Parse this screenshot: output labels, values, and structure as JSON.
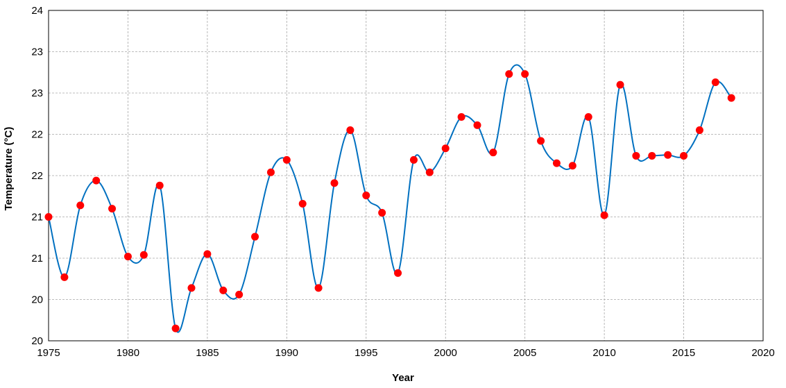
{
  "chart_data": {
    "type": "line",
    "title": "",
    "xlabel": "Year",
    "ylabel": "Temperature (°C)",
    "xlim": [
      1975,
      2020
    ],
    "ylim": [
      20,
      24
    ],
    "grid": true,
    "x_ticks": [
      "1975",
      "1980",
      "1985",
      "1990",
      "1995",
      "2000",
      "2005",
      "2010",
      "2015",
      "2020"
    ],
    "y_ticks": [
      "20",
      "20",
      "21",
      "21",
      "22",
      "22",
      "23",
      "23",
      "24"
    ],
    "series_color": "#0070c0",
    "marker_color": "#ff0000",
    "series": [
      {
        "x": [
          1975,
          1976,
          1977,
          1978,
          1979,
          1980,
          1981,
          1982,
          1983,
          1984,
          1985,
          1986,
          1987,
          1988,
          1989,
          1990,
          1991,
          1992,
          1993,
          1994,
          1995,
          1996,
          1997,
          1998,
          1999,
          2000,
          2001,
          2002,
          2003,
          2004,
          2005,
          2006,
          2007,
          2008,
          2009,
          2010,
          2011,
          2012,
          2013,
          2014,
          2015,
          2016,
          2017,
          2018
        ],
        "values": [
          21.5,
          20.77,
          21.64,
          21.94,
          21.6,
          21.02,
          21.04,
          21.88,
          20.15,
          20.64,
          21.05,
          20.61,
          20.56,
          21.26,
          22.04,
          22.19,
          21.66,
          20.64,
          21.91,
          22.55,
          21.76,
          21.55,
          20.82,
          22.19,
          22.04,
          22.33,
          22.71,
          22.61,
          22.28,
          23.23,
          23.23,
          22.42,
          22.15,
          22.12,
          22.71,
          21.52,
          23.1,
          22.24,
          22.24,
          22.25,
          22.24,
          22.55,
          23.13,
          22.94
        ]
      }
    ]
  }
}
